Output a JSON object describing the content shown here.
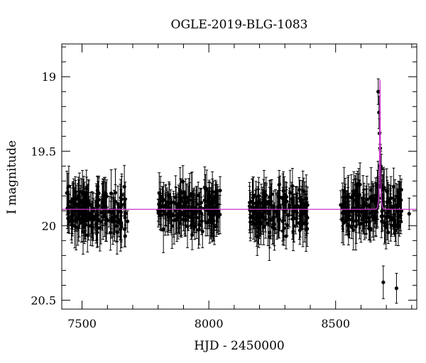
{
  "chart_data": {
    "type": "scatter",
    "title": "OGLE-2019-BLG-1083",
    "xlabel": "HJD - 2450000",
    "ylabel": "I magnitude",
    "xlim": [
      7420,
      8820
    ],
    "ylim": [
      20.56,
      18.78
    ],
    "y_inverted": true,
    "x_ticks": [
      7500,
      8000,
      8500
    ],
    "y_ticks": [
      19,
      19.5,
      20,
      20.5
    ],
    "y_tick_labels": [
      "19",
      "19.5",
      "20",
      "20.5"
    ],
    "grid": false,
    "legend": "none",
    "colors": {
      "points": "#000000",
      "model": "#cc33cc"
    },
    "baseline_mag": 19.89,
    "observing_seasons": [
      {
        "start": 7440,
        "end": 7680,
        "n_points": 180
      },
      {
        "start": 7800,
        "end": 8045,
        "n_points": 175
      },
      {
        "start": 8160,
        "end": 8390,
        "n_points": 165
      },
      {
        "start": 8520,
        "end": 8760,
        "n_points": 190
      }
    ],
    "event": {
      "peak_x": 8675,
      "peak_mag": 19.02
    },
    "highlighted_points": [
      {
        "x": 8668,
        "y": 19.1
      },
      {
        "x": 8671,
        "y": 19.24
      },
      {
        "x": 8673,
        "y": 19.38
      },
      {
        "x": 8676,
        "y": 19.48
      },
      {
        "x": 8665,
        "y": 19.74
      },
      {
        "x": 8680,
        "y": 19.62
      },
      {
        "x": 8688,
        "y": 20.38
      },
      {
        "x": 8740,
        "y": 20.42
      },
      {
        "x": 8790,
        "y": 19.92
      }
    ]
  }
}
